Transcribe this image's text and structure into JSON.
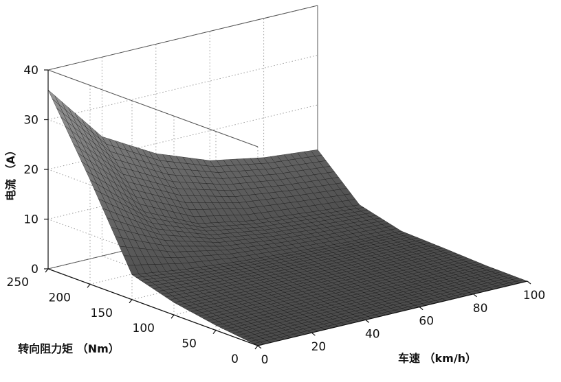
{
  "chart_data": {
    "type": "surface",
    "title": "",
    "xlabel": "车速 （km/h）",
    "ylabel": "转向阻力矩 （Nm）",
    "zlabel": "电流 （A）",
    "x": [
      0,
      20,
      40,
      60,
      80,
      100
    ],
    "y": [
      0,
      50,
      100,
      150,
      200,
      250
    ],
    "z": [
      [
        0.0,
        0.0,
        0.0,
        0.0,
        0.0,
        0.0
      ],
      [
        1.0,
        0.8,
        0.6,
        0.4,
        0.2,
        0.1
      ],
      [
        2.5,
        2.0,
        1.5,
        1.0,
        0.7,
        0.5
      ],
      [
        5.0,
        3.5,
        2.5,
        1.8,
        1.2,
        0.8
      ],
      [
        21.0,
        12.0,
        7.0,
        5.0,
        4.0,
        3.0
      ],
      [
        36.0,
        24.0,
        18.0,
        14.0,
        12.0,
        11.0
      ]
    ],
    "xlim": [
      0,
      100
    ],
    "ylim": [
      0,
      250
    ],
    "zlim": [
      0,
      40
    ],
    "x_ticks": [
      "0",
      "20",
      "40",
      "60",
      "80",
      "100"
    ],
    "y_ticks": [
      "0",
      "50",
      "100",
      "150",
      "200",
      "250"
    ],
    "z_ticks": [
      "0",
      "10",
      "20",
      "30",
      "40"
    ],
    "grid": true,
    "colormap": "gray",
    "colors": {
      "surface_dark": "#1c1c1c",
      "surface_light": "#b4b4b4",
      "grid": "#9a9a9a"
    }
  }
}
